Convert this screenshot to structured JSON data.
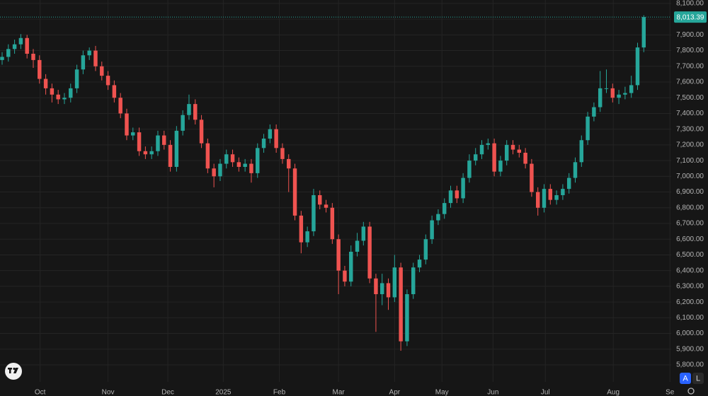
{
  "chart_data": {
    "type": "candlestick",
    "up_color": "#26a69a",
    "down_color": "#ef5350",
    "grid": true,
    "xlim": [
      -0.34,
      107.4
    ],
    "ylim": [
      5692,
      8122
    ],
    "xticks": [
      {
        "value": 6.1,
        "label": "Oct"
      },
      {
        "value": 17.0,
        "label": "Nov"
      },
      {
        "value": 26.6,
        "label": "Dec"
      },
      {
        "value": 35.5,
        "label": "2025"
      },
      {
        "value": 44.5,
        "label": "Feb"
      },
      {
        "value": 54.0,
        "label": "Mar"
      },
      {
        "value": 63.0,
        "label": "Apr"
      },
      {
        "value": 70.6,
        "label": "May"
      },
      {
        "value": 78.8,
        "label": "Jun"
      },
      {
        "value": 87.2,
        "label": "Jul"
      },
      {
        "value": 98.1,
        "label": "Aug"
      },
      {
        "value": 107.2,
        "label": "Se"
      }
    ],
    "yticks": [
      {
        "value": 5800,
        "label": "5,800.00"
      },
      {
        "value": 5900,
        "label": "5,900.00"
      },
      {
        "value": 6000,
        "label": "6,000.00"
      },
      {
        "value": 6100,
        "label": "6,100.00"
      },
      {
        "value": 6200,
        "label": "6,200.00"
      },
      {
        "value": 6300,
        "label": "6,300.00"
      },
      {
        "value": 6400,
        "label": "6,400.00"
      },
      {
        "value": 6500,
        "label": "6,500.00"
      },
      {
        "value": 6600,
        "label": "6,600.00"
      },
      {
        "value": 6700,
        "label": "6,700.00"
      },
      {
        "value": 6800,
        "label": "6,800.00"
      },
      {
        "value": 6900,
        "label": "6,900.00"
      },
      {
        "value": 7000,
        "label": "7,000.00"
      },
      {
        "value": 7100,
        "label": "7,100.00"
      },
      {
        "value": 7200,
        "label": "7,200.00"
      },
      {
        "value": 7300,
        "label": "7,300.00"
      },
      {
        "value": 7400,
        "label": "7,400.00"
      },
      {
        "value": 7500,
        "label": "7,500.00"
      },
      {
        "value": 7600,
        "label": "7,600.00"
      },
      {
        "value": 7700,
        "label": "7,700.00"
      },
      {
        "value": 7800,
        "label": "7,800.00"
      },
      {
        "value": 7900,
        "label": "7,900.00"
      },
      {
        "value": 8000,
        "label": "8,000.00"
      },
      {
        "value": 8100,
        "label": "8,100.00"
      }
    ],
    "last_price": {
      "value": 8013.39,
      "label": "8,013.39"
    },
    "open": [
      7740,
      7760,
      7810,
      7840,
      7880,
      7780,
      7740,
      7620,
      7560,
      7520,
      7490,
      7500,
      7560,
      7680,
      7770,
      7800,
      7700,
      7640,
      7580,
      7500,
      7400,
      7260,
      7280,
      7160,
      7140,
      7160,
      7260,
      7200,
      7060,
      7290,
      7390,
      7460,
      7360,
      7210,
      7050,
      7000,
      7080,
      7140,
      7090,
      7060,
      7080,
      7020,
      7180,
      7240,
      7300,
      7180,
      7110,
      7050,
      6750,
      6580,
      6650,
      6880,
      6820,
      6800,
      6600,
      6400,
      6330,
      6520,
      6590,
      6680,
      6350,
      6250,
      6320,
      6230,
      6420,
      5950,
      6250,
      6420,
      6470,
      6600,
      6720,
      6760,
      6830,
      6910,
      6860,
      6990,
      7100,
      7140,
      7200,
      7210,
      7030,
      7100,
      7200,
      7170,
      7150,
      7080,
      6900,
      6800,
      6920,
      6850,
      6880,
      6920,
      6990,
      7090,
      7230,
      7380,
      7440,
      7560,
      7560,
      7500,
      7520,
      7530,
      7580,
      7820
    ],
    "high": [
      7790,
      7840,
      7870,
      7905,
      7900,
      7810,
      7770,
      7650,
      7590,
      7550,
      7530,
      7590,
      7710,
      7800,
      7820,
      7830,
      7730,
      7670,
      7610,
      7530,
      7430,
      7310,
      7310,
      7190,
      7190,
      7290,
      7290,
      7230,
      7320,
      7420,
      7520,
      7490,
      7390,
      7240,
      7080,
      7110,
      7170,
      7170,
      7120,
      7110,
      7110,
      7210,
      7270,
      7330,
      7330,
      7210,
      7140,
      7080,
      6780,
      6680,
      6920,
      6910,
      6850,
      6830,
      6630,
      6430,
      6560,
      6640,
      6710,
      6710,
      6380,
      6380,
      6350,
      6500,
      6450,
      6280,
      6450,
      6500,
      6630,
      6750,
      6790,
      6860,
      6940,
      6940,
      7020,
      7140,
      7180,
      7230,
      7240,
      7240,
      7130,
      7230,
      7230,
      7200,
      7180,
      7110,
      6930,
      6950,
      6950,
      6910,
      6950,
      7020,
      7120,
      7260,
      7410,
      7470,
      7670,
      7680,
      7590,
      7550,
      7570,
      7640,
      7850,
      8025
    ],
    "low": [
      7710,
      7730,
      7780,
      7810,
      7750,
      7690,
      7590,
      7520,
      7470,
      7460,
      7460,
      7470,
      7530,
      7650,
      7740,
      7670,
      7610,
      7550,
      7470,
      7370,
      7230,
      7230,
      7130,
      7110,
      7110,
      7130,
      7170,
      7030,
      7030,
      7260,
      7360,
      7330,
      7180,
      7020,
      6930,
      6970,
      7050,
      7060,
      7030,
      7030,
      6960,
      6990,
      7150,
      7210,
      7150,
      7080,
      6900,
      6720,
      6510,
      6550,
      6620,
      6790,
      6770,
      6570,
      6250,
      6300,
      6300,
      6490,
      6560,
      6320,
      6010,
      6180,
      6150,
      6200,
      5890,
      5920,
      6220,
      6390,
      6440,
      6570,
      6690,
      6730,
      6800,
      6830,
      6830,
      6960,
      7070,
      7110,
      7170,
      7000,
      7000,
      7070,
      7140,
      7120,
      7050,
      6870,
      6750,
      6770,
      6820,
      6820,
      6850,
      6890,
      6960,
      7060,
      7200,
      7350,
      7410,
      7530,
      7470,
      7460,
      7490,
      7500,
      7550,
      7790
    ],
    "close": [
      7760,
      7810,
      7840,
      7880,
      7780,
      7740,
      7620,
      7560,
      7520,
      7490,
      7500,
      7560,
      7680,
      7770,
      7800,
      7700,
      7640,
      7580,
      7500,
      7400,
      7260,
      7280,
      7160,
      7140,
      7160,
      7260,
      7200,
      7060,
      7290,
      7390,
      7460,
      7360,
      7210,
      7050,
      7000,
      7080,
      7140,
      7090,
      7060,
      7080,
      7020,
      7180,
      7240,
      7300,
      7180,
      7110,
      7050,
      6750,
      6580,
      6650,
      6880,
      6820,
      6800,
      6600,
      6400,
      6330,
      6520,
      6590,
      6680,
      6350,
      6250,
      6320,
      6230,
      6420,
      5950,
      6250,
      6420,
      6470,
      6600,
      6720,
      6760,
      6830,
      6910,
      6860,
      6990,
      7100,
      7140,
      7200,
      7210,
      7030,
      7100,
      7200,
      7170,
      7150,
      7080,
      6900,
      6800,
      6920,
      6850,
      6880,
      6920,
      6990,
      7090,
      7230,
      7380,
      7440,
      7560,
      7560,
      7500,
      7520,
      7530,
      7580,
      7820,
      8013.39
    ]
  },
  "controls": [
    "A",
    "L"
  ]
}
